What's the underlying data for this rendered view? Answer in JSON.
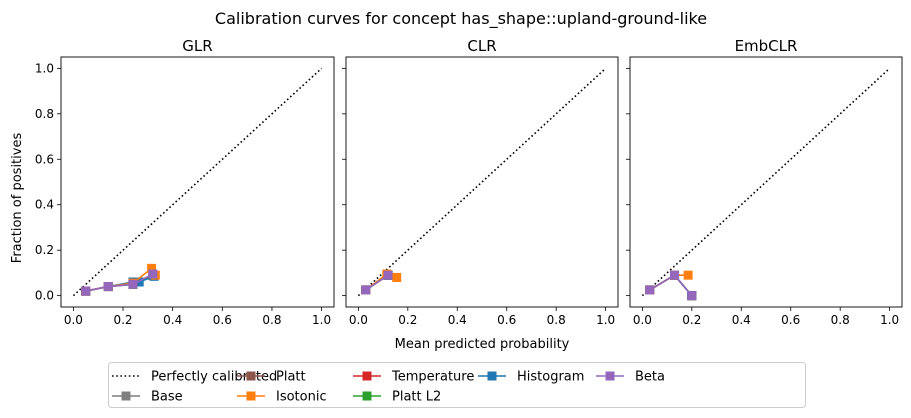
{
  "figure": {
    "title": "Calibration curves for concept has_shape::upland-ground-like",
    "xlabel": "Mean predicted probability",
    "ylabel": "Fraction of positives"
  },
  "colors": {
    "Perfectly calibrated": "#000000",
    "Base": "#7f7f7f",
    "Platt": "#8c564b",
    "Isotonic": "#ff7f0e",
    "Temperature": "#d62728",
    "Platt L2": "#2ca02c",
    "Histogram": "#1f77b4",
    "Beta": "#9467bd"
  },
  "legend": {
    "placement": "bottom-center",
    "entries": [
      "Perfectly calibrated",
      "Base",
      "Platt",
      "Isotonic",
      "Temperature",
      "Platt L2",
      "Histogram",
      "Beta"
    ]
  },
  "chart_data": [
    {
      "type": "line",
      "title": "GLR",
      "xlim": [
        -0.05,
        1.05
      ],
      "ylim": [
        -0.05,
        1.05
      ],
      "xticks": [
        "0.0",
        "0.2",
        "0.4",
        "0.6",
        "0.8",
        "1.0"
      ],
      "yticks": [
        "0.0",
        "0.2",
        "0.4",
        "0.6",
        "0.8",
        "1.0"
      ],
      "grid": false,
      "series": [
        {
          "name": "Perfectly calibrated",
          "style": "dotted",
          "x": [
            0,
            1
          ],
          "y": [
            0,
            1
          ]
        },
        {
          "name": "Base",
          "x": [
            0.05,
            0.14,
            0.24,
            0.32
          ],
          "y": [
            0.02,
            0.04,
            0.05,
            0.09
          ]
        },
        {
          "name": "Platt",
          "x": [
            0.05,
            0.14,
            0.24,
            0.32
          ],
          "y": [
            0.02,
            0.04,
            0.05,
            0.09
          ]
        },
        {
          "name": "Temperature",
          "x": [
            0.05,
            0.14,
            0.24,
            0.32
          ],
          "y": [
            0.02,
            0.04,
            0.05,
            0.09
          ]
        },
        {
          "name": "Platt L2",
          "x": [
            0.05,
            0.14,
            0.24,
            0.32
          ],
          "y": [
            0.02,
            0.04,
            0.05,
            0.09
          ]
        },
        {
          "name": "Histogram",
          "x": [
            0.05,
            0.14,
            0.24,
            0.265,
            0.325
          ],
          "y": [
            0.02,
            0.04,
            0.06,
            0.06,
            0.085
          ]
        },
        {
          "name": "Isotonic",
          "x": [
            0.05,
            0.14,
            0.24,
            0.315,
            0.33
          ],
          "y": [
            0.02,
            0.04,
            0.055,
            0.12,
            0.09
          ]
        },
        {
          "name": "Beta",
          "x": [
            0.05,
            0.14,
            0.24,
            0.32
          ],
          "y": [
            0.02,
            0.04,
            0.05,
            0.095
          ]
        }
      ]
    },
    {
      "type": "line",
      "title": "CLR",
      "xlim": [
        -0.05,
        1.05
      ],
      "ylim": [
        -0.05,
        1.05
      ],
      "xticks": [
        "0.0",
        "0.2",
        "0.4",
        "0.6",
        "0.8",
        "1.0"
      ],
      "yticks": [
        "0.0",
        "0.2",
        "0.4",
        "0.6",
        "0.8",
        "1.0"
      ],
      "grid": false,
      "series": [
        {
          "name": "Perfectly calibrated",
          "style": "dotted",
          "x": [
            0,
            1
          ],
          "y": [
            0,
            1
          ]
        },
        {
          "name": "Base",
          "x": [
            0.03,
            0.12
          ],
          "y": [
            0.025,
            0.09
          ]
        },
        {
          "name": "Platt",
          "x": [
            0.03,
            0.12
          ],
          "y": [
            0.025,
            0.09
          ]
        },
        {
          "name": "Temperature",
          "x": [
            0.03,
            0.12
          ],
          "y": [
            0.025,
            0.09
          ]
        },
        {
          "name": "Platt L2",
          "x": [
            0.03,
            0.12
          ],
          "y": [
            0.025,
            0.09
          ]
        },
        {
          "name": "Histogram",
          "x": [
            0.03,
            0.12
          ],
          "y": [
            0.025,
            0.09
          ]
        },
        {
          "name": "Isotonic",
          "x": [
            0.03,
            0.115,
            0.155
          ],
          "y": [
            0.025,
            0.095,
            0.08
          ]
        },
        {
          "name": "Beta",
          "x": [
            0.03,
            0.12
          ],
          "y": [
            0.025,
            0.09
          ]
        }
      ]
    },
    {
      "type": "line",
      "title": "EmbCLR",
      "xlim": [
        -0.05,
        1.05
      ],
      "ylim": [
        -0.05,
        1.05
      ],
      "xticks": [
        "0.0",
        "0.2",
        "0.4",
        "0.6",
        "0.8",
        "1.0"
      ],
      "yticks": [
        "0.0",
        "0.2",
        "0.4",
        "0.6",
        "0.8",
        "1.0"
      ],
      "grid": false,
      "series": [
        {
          "name": "Perfectly calibrated",
          "style": "dotted",
          "x": [
            0,
            1
          ],
          "y": [
            0,
            1
          ]
        },
        {
          "name": "Base",
          "x": [
            0.03,
            0.13,
            0.2
          ],
          "y": [
            0.025,
            0.09,
            0.0
          ]
        },
        {
          "name": "Platt",
          "x": [
            0.03,
            0.13,
            0.2
          ],
          "y": [
            0.025,
            0.09,
            0.0
          ]
        },
        {
          "name": "Temperature",
          "x": [
            0.03,
            0.13,
            0.2
          ],
          "y": [
            0.025,
            0.09,
            0.0
          ]
        },
        {
          "name": "Platt L2",
          "x": [
            0.03,
            0.13,
            0.2
          ],
          "y": [
            0.025,
            0.09,
            0.0
          ]
        },
        {
          "name": "Histogram",
          "x": [
            0.03,
            0.13,
            0.2
          ],
          "y": [
            0.025,
            0.09,
            0.0
          ]
        },
        {
          "name": "Isotonic",
          "x": [
            0.03,
            0.13,
            0.185
          ],
          "y": [
            0.025,
            0.09,
            0.09
          ]
        },
        {
          "name": "Beta",
          "x": [
            0.03,
            0.13,
            0.2
          ],
          "y": [
            0.025,
            0.09,
            0.0
          ]
        }
      ]
    }
  ]
}
